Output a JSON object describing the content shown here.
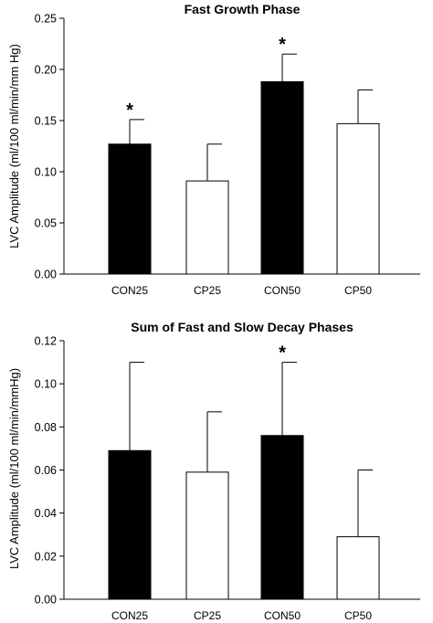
{
  "chart_data": [
    {
      "type": "bar",
      "title": "Fast Growth Phase",
      "ylabel": "LVC Amplitude (ml/100 ml/min/mm Hg)",
      "xlabel": "",
      "ylim": [
        0,
        0.25
      ],
      "yticks": [
        "0.00",
        "0.05",
        "0.10",
        "0.15",
        "0.20",
        "0.25"
      ],
      "categories": [
        "CON25",
        "CP25",
        "CON50",
        "CP50"
      ],
      "values": [
        0.127,
        0.091,
        0.188,
        0.147
      ],
      "errors": [
        0.024,
        0.036,
        0.027,
        0.033
      ],
      "fills": [
        "#000000",
        "#ffffff",
        "#000000",
        "#ffffff"
      ],
      "annotations": [
        "*",
        "",
        "*",
        ""
      ]
    },
    {
      "type": "bar",
      "title": "Sum of Fast and Slow Decay Phases",
      "ylabel": "LVC Amplitude (ml/100 ml/min/mmHg)",
      "xlabel": "",
      "ylim": [
        0,
        0.12
      ],
      "yticks": [
        "0.00",
        "0.02",
        "0.04",
        "0.06",
        "0.08",
        "0.10",
        "0.12"
      ],
      "categories": [
        "CON25",
        "CP25",
        "CON50",
        "CP50"
      ],
      "values": [
        0.069,
        0.059,
        0.076,
        0.029
      ],
      "errors": [
        0.041,
        0.028,
        0.034,
        0.031
      ],
      "fills": [
        "#000000",
        "#ffffff",
        "#000000",
        "#ffffff"
      ],
      "annotations": [
        "",
        "",
        "*",
        ""
      ]
    }
  ]
}
